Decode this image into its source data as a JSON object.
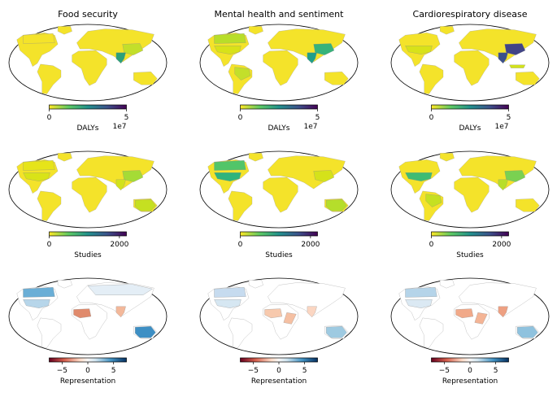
{
  "figure": {
    "columns": [
      "Food security",
      "Mental health and sentiment",
      "Cardiorespiratory disease"
    ],
    "rows": [
      {
        "metric": "DALYs",
        "colormap": "viridis_r",
        "ticks": [
          "0",
          "5"
        ],
        "offset": "1e7"
      },
      {
        "metric": "Studies",
        "colormap": "viridis_r",
        "ticks": [
          "0",
          "2000"
        ],
        "offset": ""
      },
      {
        "metric": "Representation",
        "colormap": "RdBu",
        "ticks": [
          "−5",
          "0",
          "5"
        ],
        "offset": ""
      }
    ]
  },
  "chart_data": [
    {
      "type": "heatmap",
      "title": "Food security",
      "colorbar_label": "DALYs",
      "colorbar_range": [
        0,
        50000000
      ],
      "colorbar_ticks": [
        0,
        5
      ],
      "colorbar_offset": "1e7",
      "regions": [
        {
          "name": "India",
          "value": 38000000
        },
        {
          "name": "China",
          "value": 22000000
        },
        {
          "name": "Canada",
          "value": 2000000
        },
        {
          "name": "Greenland",
          "value": 0
        }
      ]
    },
    {
      "type": "heatmap",
      "title": "Mental health and sentiment",
      "colorbar_label": "DALYs",
      "colorbar_range": [
        0,
        50000000
      ],
      "colorbar_ticks": [
        0,
        5
      ],
      "colorbar_offset": "1e7",
      "regions": [
        {
          "name": "India",
          "value": 30000000
        },
        {
          "name": "China",
          "value": 28000000
        },
        {
          "name": "United States",
          "value": 8000000
        },
        {
          "name": "Brazil",
          "value": 6000000
        }
      ]
    },
    {
      "type": "heatmap",
      "title": "Cardiorespiratory disease",
      "colorbar_label": "DALYs",
      "colorbar_range": [
        0,
        50000000
      ],
      "colorbar_ticks": [
        0,
        5
      ],
      "colorbar_offset": "1e7",
      "regions": [
        {
          "name": "India",
          "value": 45000000
        },
        {
          "name": "China",
          "value": 42000000
        },
        {
          "name": "United States",
          "value": 6000000
        },
        {
          "name": "Indonesia",
          "value": 5000000
        }
      ]
    },
    {
      "type": "heatmap",
      "title": "Food security",
      "colorbar_label": "Studies",
      "colorbar_range": [
        0,
        2200
      ],
      "colorbar_ticks": [
        0,
        2000
      ],
      "regions": [
        {
          "name": "United States",
          "value": 350
        },
        {
          "name": "China",
          "value": 300
        },
        {
          "name": "Australia",
          "value": 250
        },
        {
          "name": "India",
          "value": 500
        }
      ]
    },
    {
      "type": "heatmap",
      "title": "Mental health and sentiment",
      "colorbar_label": "Studies",
      "colorbar_range": [
        0,
        2200
      ],
      "colorbar_ticks": [
        0,
        2000
      ],
      "regions": [
        {
          "name": "United States",
          "value": 1100
        },
        {
          "name": "Canada",
          "value": 750
        },
        {
          "name": "Australia",
          "value": 350
        },
        {
          "name": "China",
          "value": 200
        }
      ]
    },
    {
      "type": "heatmap",
      "title": "Cardiorespiratory disease",
      "colorbar_label": "Studies",
      "colorbar_range": [
        0,
        2200
      ],
      "colorbar_ticks": [
        0,
        2000
      ],
      "regions": [
        {
          "name": "United States",
          "value": 1050
        },
        {
          "name": "China",
          "value": 900
        },
        {
          "name": "India",
          "value": 500
        },
        {
          "name": "Brazil",
          "value": 300
        }
      ]
    },
    {
      "type": "heatmap",
      "title": "Food security",
      "colorbar_label": "Representation",
      "colorbar_range": [
        -7.5,
        7.5
      ],
      "colorbar_ticks": [
        -5,
        0,
        5
      ],
      "regions": [
        {
          "name": "Australia",
          "value": 6
        },
        {
          "name": "Canada",
          "value": 3
        },
        {
          "name": "Nigeria",
          "value": -4
        },
        {
          "name": "India",
          "value": -2
        }
      ]
    },
    {
      "type": "heatmap",
      "title": "Mental health and sentiment",
      "colorbar_label": "Representation",
      "colorbar_range": [
        -7.5,
        7.5
      ],
      "colorbar_ticks": [
        -5,
        0,
        5
      ],
      "regions": [
        {
          "name": "Australia",
          "value": 3
        },
        {
          "name": "Canada",
          "value": 2
        },
        {
          "name": "Sahel",
          "value": -2
        },
        {
          "name": "India",
          "value": -1.5
        }
      ]
    },
    {
      "type": "heatmap",
      "title": "Cardiorespiratory disease",
      "colorbar_label": "Representation",
      "colorbar_range": [
        -7.5,
        7.5
      ],
      "colorbar_ticks": [
        -5,
        0,
        5
      ],
      "regions": [
        {
          "name": "Australia",
          "value": 3.5
        },
        {
          "name": "Canada",
          "value": 2.5
        },
        {
          "name": "Nigeria",
          "value": -3
        },
        {
          "name": "India",
          "value": -2.5
        }
      ]
    }
  ]
}
